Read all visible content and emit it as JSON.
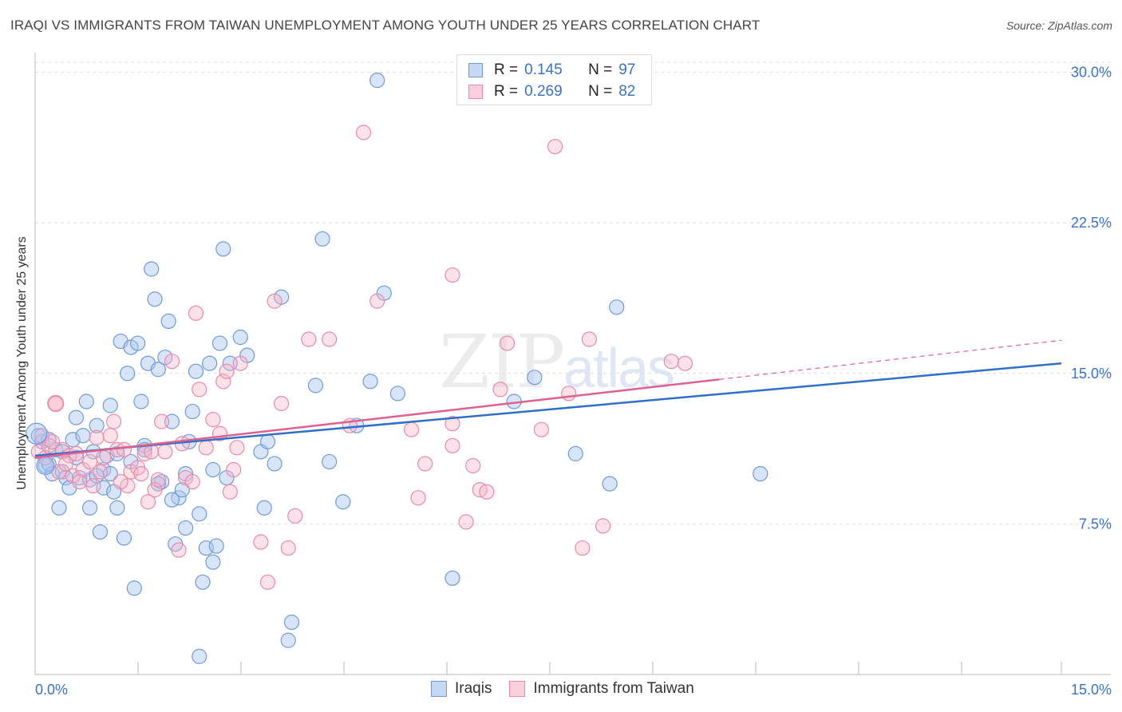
{
  "title": "IRAQI VS IMMIGRANTS FROM TAIWAN UNEMPLOYMENT AMONG YOUTH UNDER 25 YEARS CORRELATION CHART",
  "source": "Source: ZipAtlas.com",
  "watermark": {
    "zip": "ZIP",
    "atlas": "atlas"
  },
  "colors": {
    "iraqi": "#a9c6ef",
    "iraqi_line": "#2f6fcc",
    "taiwan": "#f4b6c8",
    "taiwan_line": "#e0608e",
    "axis_text": "#3b73c8"
  },
  "legend_top": [
    {
      "r_label": "R =",
      "r_value": "0.145",
      "n_label": "N =",
      "n_value": "97"
    },
    {
      "r_label": "R =",
      "r_value": "0.269",
      "n_label": "N =",
      "n_value": "82"
    }
  ],
  "legend_bottom": {
    "iraqi": "Iraqis",
    "taiwan": "Immigrants from Taiwan"
  },
  "chart_data": {
    "type": "scatter",
    "title": "IRAQI VS IMMIGRANTS FROM TAIWAN UNEMPLOYMENT AMONG YOUTH UNDER 25 YEARS CORRELATION CHART",
    "xlabel": "",
    "ylabel": "Unemployment Among Youth under 25 years",
    "xlim": [
      0,
      15
    ],
    "ylim": [
      0,
      30.5
    ],
    "x_tick_labels": [
      "0.0%",
      "15.0%"
    ],
    "y_tick_labels": [
      "7.5%",
      "15.0%",
      "22.5%",
      "30.0%"
    ],
    "y_ticks": [
      7.5,
      15,
      22.5,
      30
    ],
    "grid": true,
    "legend_position": "top-center",
    "series": [
      {
        "name": "Iraqis",
        "r": 0.145,
        "n": 97,
        "trend": {
          "x": [
            0,
            15
          ],
          "y": [
            10.9,
            15.5
          ]
        },
        "points": [
          [
            0.05,
            11.9
          ],
          [
            0.1,
            11.6
          ],
          [
            0.15,
            10.4
          ],
          [
            0.2,
            11.7
          ],
          [
            0.25,
            10.0
          ],
          [
            0.3,
            11.2
          ],
          [
            0.35,
            8.3
          ],
          [
            0.4,
            10.1
          ],
          [
            0.45,
            9.8
          ],
          [
            0.5,
            9.3
          ],
          [
            0.55,
            11.7
          ],
          [
            0.6,
            12.8
          ],
          [
            0.65,
            9.8
          ],
          [
            0.7,
            11.9
          ],
          [
            0.75,
            13.6
          ],
          [
            0.8,
            8.3
          ],
          [
            0.85,
            11.1
          ],
          [
            0.9,
            12.4
          ],
          [
            0.95,
            7.1
          ],
          [
            1.0,
            9.3
          ],
          [
            1.05,
            10.9
          ],
          [
            1.1,
            13.4
          ],
          [
            1.15,
            9.1
          ],
          [
            1.2,
            8.3
          ],
          [
            1.25,
            16.6
          ],
          [
            1.3,
            6.8
          ],
          [
            1.35,
            15.0
          ],
          [
            1.4,
            16.3
          ],
          [
            1.45,
            4.3
          ],
          [
            1.5,
            16.5
          ],
          [
            1.55,
            13.6
          ],
          [
            1.6,
            11.4
          ],
          [
            1.65,
            15.5
          ],
          [
            1.7,
            20.2
          ],
          [
            1.75,
            18.7
          ],
          [
            1.8,
            15.2
          ],
          [
            1.85,
            9.6
          ],
          [
            1.9,
            15.8
          ],
          [
            1.95,
            17.6
          ],
          [
            2.0,
            12.6
          ],
          [
            2.05,
            6.5
          ],
          [
            2.1,
            8.8
          ],
          [
            2.15,
            9.2
          ],
          [
            2.2,
            7.3
          ],
          [
            2.25,
            11.6
          ],
          [
            2.3,
            13.1
          ],
          [
            2.35,
            15.1
          ],
          [
            2.4,
            8.0
          ],
          [
            2.45,
            4.6
          ],
          [
            2.5,
            6.3
          ],
          [
            2.55,
            15.5
          ],
          [
            2.6,
            5.6
          ],
          [
            2.65,
            6.4
          ],
          [
            2.7,
            16.5
          ],
          [
            2.75,
            21.2
          ],
          [
            2.8,
            9.8
          ],
          [
            2.85,
            15.5
          ],
          [
            3.0,
            16.8
          ],
          [
            3.1,
            15.9
          ],
          [
            3.3,
            11.1
          ],
          [
            3.35,
            8.3
          ],
          [
            3.4,
            11.6
          ],
          [
            3.5,
            10.5
          ],
          [
            3.6,
            18.8
          ],
          [
            3.7,
            1.7
          ],
          [
            3.75,
            2.6
          ],
          [
            4.1,
            14.4
          ],
          [
            4.2,
            21.7
          ],
          [
            4.3,
            10.6
          ],
          [
            4.5,
            8.6
          ],
          [
            4.7,
            12.4
          ],
          [
            4.9,
            14.6
          ],
          [
            5.0,
            29.6
          ],
          [
            5.1,
            19.0
          ],
          [
            5.3,
            14.0
          ],
          [
            6.1,
            4.8
          ],
          [
            7.0,
            13.6
          ],
          [
            7.3,
            14.8
          ],
          [
            7.9,
            11.0
          ],
          [
            8.4,
            9.5
          ],
          [
            8.5,
            18.3
          ],
          [
            10.6,
            10.0
          ],
          [
            0.2,
            10.5
          ],
          [
            0.4,
            11.1
          ],
          [
            0.6,
            10.8
          ],
          [
            0.8,
            9.7
          ],
          [
            1.0,
            10.2
          ],
          [
            1.2,
            11.0
          ],
          [
            1.4,
            10.6
          ],
          [
            1.6,
            11.2
          ],
          [
            1.8,
            9.5
          ],
          [
            2.0,
            8.7
          ],
          [
            2.2,
            10.0
          ],
          [
            2.4,
            0.9
          ],
          [
            2.6,
            10.2
          ],
          [
            1.1,
            10.0
          ],
          [
            0.9,
            9.9
          ]
        ]
      },
      {
        "name": "Immigrants from Taiwan",
        "r": 0.269,
        "n": 82,
        "trend": {
          "x": [
            0,
            10
          ],
          "y": [
            10.8,
            14.7
          ]
        },
        "points": [
          [
            0.05,
            11.1
          ],
          [
            0.1,
            11.9
          ],
          [
            0.15,
            10.8
          ],
          [
            0.2,
            11.4
          ],
          [
            0.3,
            13.5
          ],
          [
            0.35,
            10.1
          ],
          [
            0.4,
            11.2
          ],
          [
            0.5,
            10.9
          ],
          [
            0.55,
            9.9
          ],
          [
            0.6,
            11.0
          ],
          [
            0.7,
            10.2
          ],
          [
            0.8,
            10.6
          ],
          [
            0.85,
            9.4
          ],
          [
            0.9,
            11.8
          ],
          [
            0.95,
            10.1
          ],
          [
            1.0,
            10.8
          ],
          [
            1.1,
            11.9
          ],
          [
            1.15,
            12.6
          ],
          [
            1.2,
            11.2
          ],
          [
            1.3,
            11.2
          ],
          [
            1.35,
            9.4
          ],
          [
            1.4,
            10.1
          ],
          [
            1.5,
            10.3
          ],
          [
            1.6,
            11.0
          ],
          [
            1.65,
            8.6
          ],
          [
            1.7,
            11.1
          ],
          [
            1.75,
            9.2
          ],
          [
            1.8,
            9.7
          ],
          [
            1.85,
            12.6
          ],
          [
            1.9,
            11.1
          ],
          [
            2.0,
            15.6
          ],
          [
            2.1,
            6.2
          ],
          [
            2.2,
            9.8
          ],
          [
            2.3,
            9.6
          ],
          [
            2.35,
            18.0
          ],
          [
            2.4,
            14.2
          ],
          [
            2.5,
            11.3
          ],
          [
            2.6,
            12.7
          ],
          [
            2.7,
            12.0
          ],
          [
            2.75,
            14.6
          ],
          [
            2.8,
            15.1
          ],
          [
            2.85,
            9.1
          ],
          [
            2.9,
            10.2
          ],
          [
            2.95,
            11.3
          ],
          [
            3.0,
            15.5
          ],
          [
            3.3,
            6.6
          ],
          [
            3.4,
            4.6
          ],
          [
            3.5,
            18.6
          ],
          [
            3.6,
            13.5
          ],
          [
            3.7,
            6.3
          ],
          [
            3.8,
            7.9
          ],
          [
            4.0,
            16.7
          ],
          [
            4.3,
            16.7
          ],
          [
            4.6,
            12.4
          ],
          [
            4.8,
            27.0
          ],
          [
            5.0,
            18.6
          ],
          [
            5.5,
            12.2
          ],
          [
            5.6,
            8.8
          ],
          [
            5.7,
            10.5
          ],
          [
            6.1,
            19.9
          ],
          [
            6.1,
            11.4
          ],
          [
            6.3,
            7.6
          ],
          [
            6.4,
            10.4
          ],
          [
            6.5,
            9.2
          ],
          [
            6.6,
            9.1
          ],
          [
            6.8,
            14.2
          ],
          [
            6.9,
            16.5
          ],
          [
            7.4,
            12.2
          ],
          [
            7.6,
            26.3
          ],
          [
            7.8,
            14.0
          ],
          [
            8.0,
            6.3
          ],
          [
            8.1,
            16.7
          ],
          [
            8.3,
            7.4
          ],
          [
            9.3,
            15.6
          ],
          [
            9.5,
            15.5
          ],
          [
            0.25,
            11.6
          ],
          [
            0.45,
            10.5
          ],
          [
            0.65,
            9.6
          ],
          [
            1.25,
            9.6
          ],
          [
            1.55,
            10.0
          ],
          [
            2.15,
            11.5
          ],
          [
            6.1,
            12.5
          ]
        ]
      }
    ]
  }
}
